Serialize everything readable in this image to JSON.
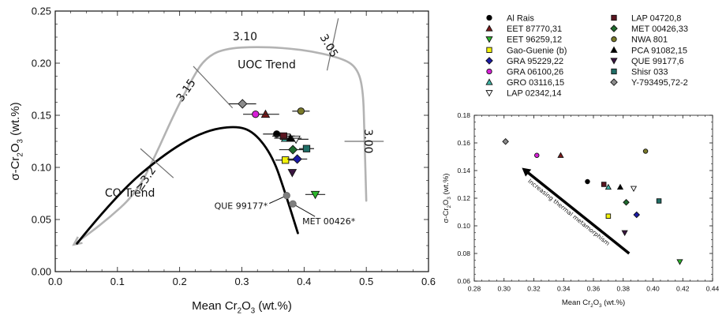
{
  "chart_data": [
    {
      "id": "main",
      "type": "scatter",
      "title": "",
      "xlabel": "Mean Cr2O3 (wt.%)",
      "xlabel_parts": [
        "Mean Cr",
        "2",
        "O",
        "3",
        " (wt.%)"
      ],
      "ylabel": "σ-Cr2O3 (wt.%)",
      "ylabel_parts": [
        "σ-Cr",
        "2",
        "O",
        "3",
        " (wt.%)"
      ],
      "xlim": [
        0.0,
        0.6
      ],
      "ylim": [
        0.0,
        0.25
      ],
      "xticks": [
        "0.0",
        "0.1",
        "0.2",
        "0.3",
        "0.4",
        "0.5",
        "0.6"
      ],
      "xtick_values": [
        0.0,
        0.1,
        0.2,
        0.3,
        0.4,
        0.5,
        0.6
      ],
      "yticks": [
        "0.00",
        "0.05",
        "0.10",
        "0.15",
        "0.20",
        "0.25"
      ],
      "ytick_values": [
        0.0,
        0.05,
        0.1,
        0.15,
        0.2,
        0.25
      ],
      "grid": false,
      "trends": [
        {
          "name": "UOC Trend",
          "color": "#b3b3b3",
          "points": [
            [
              0.5,
              0.068
            ],
            [
              0.497,
              0.13
            ],
            [
              0.495,
              0.175
            ],
            [
              0.485,
              0.196
            ],
            [
              0.46,
              0.205
            ],
            [
              0.4,
              0.213
            ],
            [
              0.33,
              0.216
            ],
            [
              0.27,
              0.214
            ],
            [
              0.24,
              0.204
            ],
            [
              0.22,
              0.185
            ],
            [
              0.19,
              0.15
            ],
            [
              0.16,
              0.11
            ],
            [
              0.13,
              0.075
            ],
            [
              0.08,
              0.048
            ],
            [
              0.03,
              0.026
            ]
          ],
          "arrow_end": true,
          "label_pos": [
            0.34,
            0.195
          ]
        },
        {
          "name": "CO Trend",
          "color": "#000000",
          "points": [
            [
              0.035,
              0.027
            ],
            [
              0.1,
              0.075
            ],
            [
              0.18,
              0.115
            ],
            [
              0.24,
              0.135
            ],
            [
              0.29,
              0.14
            ],
            [
              0.32,
              0.134
            ],
            [
              0.35,
              0.11
            ],
            [
              0.37,
              0.075
            ],
            [
              0.39,
              0.037
            ]
          ],
          "label_pos": [
            0.12,
            0.072
          ]
        }
      ],
      "petrologic_ticks": [
        {
          "label": "3.00",
          "x": 0.497,
          "y": 0.125,
          "angle": 90
        },
        {
          "label": "3.05",
          "x": 0.435,
          "y": 0.215,
          "angle": 60
        },
        {
          "label": "3.10",
          "x": 0.305,
          "y": 0.222,
          "angle": 0
        },
        {
          "label": "3.15",
          "x": 0.215,
          "y": 0.172,
          "angle": -55
        },
        {
          "label": "≥3.2",
          "x": 0.15,
          "y": 0.087,
          "angle": -55
        }
      ],
      "highlighted": [
        {
          "name": "QUE 99177*",
          "x": 0.372,
          "y": 0.073
        },
        {
          "name": "MET 00426*",
          "x": 0.382,
          "y": 0.065
        }
      ],
      "series": [
        {
          "name": "Al Rais",
          "x": 0.356,
          "y": 0.132,
          "xerr": 0.022
        },
        {
          "name": "EET 87770,31",
          "x": 0.338,
          "y": 0.151,
          "xerr": 0.022
        },
        {
          "name": "EET 96259,12",
          "x": 0.418,
          "y": 0.074,
          "xerr": 0.016
        },
        {
          "name": "Gao-Guenie (b)",
          "x": 0.37,
          "y": 0.107,
          "xerr": 0.016
        },
        {
          "name": "GRA 95229,22",
          "x": 0.389,
          "y": 0.108,
          "xerr": 0.016
        },
        {
          "name": "GRA 06100,26",
          "x": 0.322,
          "y": 0.151,
          "xerr": 0.02
        },
        {
          "name": "GRO 03116,15",
          "x": 0.37,
          "y": 0.128,
          "xerr": 0.018
        },
        {
          "name": "LAP 02342,14",
          "x": 0.387,
          "y": 0.127,
          "xerr": 0.02
        },
        {
          "name": "LAP 04720,8",
          "x": 0.367,
          "y": 0.13,
          "xerr": 0.018
        },
        {
          "name": "MET 00426,33",
          "x": 0.382,
          "y": 0.117,
          "xerr": 0.022
        },
        {
          "name": "NWA 801",
          "x": 0.395,
          "y": 0.154,
          "xerr": 0.014
        },
        {
          "name": "PCA 91082,15",
          "x": 0.378,
          "y": 0.128,
          "xerr": 0.018
        },
        {
          "name": "QUE 99177,6",
          "x": 0.381,
          "y": 0.095,
          "xerr": 0.0
        },
        {
          "name": "Shisr 033",
          "x": 0.404,
          "y": 0.118,
          "xerr": 0.012
        },
        {
          "name": "Y-793495,72-2",
          "x": 0.301,
          "y": 0.161,
          "xerr": 0.022
        }
      ]
    },
    {
      "id": "inset",
      "type": "scatter",
      "title": "",
      "xlabel": "Mean Cr2O3 (wt.%)",
      "xlabel_parts": [
        "Mean Cr",
        "2",
        "O",
        "3",
        " (wt.%)"
      ],
      "ylabel": "σ-Cr2O3 (wt.%)",
      "ylabel_parts": [
        "σ-Cr",
        "2",
        "O",
        "3",
        " (wt.%)"
      ],
      "xlim": [
        0.28,
        0.44
      ],
      "ylim": [
        0.06,
        0.18
      ],
      "xticks": [
        "0.28",
        "0.30",
        "0.32",
        "0.34",
        "0.36",
        "0.38",
        "0.40",
        "0.42",
        "0.44"
      ],
      "xtick_values": [
        0.28,
        0.3,
        0.32,
        0.34,
        0.36,
        0.38,
        0.4,
        0.42,
        0.44
      ],
      "yticks": [
        "0.06",
        "0.08",
        "0.10",
        "0.12",
        "0.14",
        "0.16",
        "0.18"
      ],
      "ytick_values": [
        0.06,
        0.08,
        0.1,
        0.12,
        0.14,
        0.16,
        0.18
      ],
      "grid": false,
      "annotation": {
        "text": "Increasing thermal metamorphism",
        "arrow_from": [
          0.384,
          0.08
        ],
        "arrow_to": [
          0.312,
          0.142
        ]
      },
      "series": [
        {
          "name": "Al Rais",
          "x": 0.356,
          "y": 0.132
        },
        {
          "name": "EET 87770,31",
          "x": 0.338,
          "y": 0.151
        },
        {
          "name": "EET 96259,12",
          "x": 0.418,
          "y": 0.074
        },
        {
          "name": "Gao-Guenie (b)",
          "x": 0.37,
          "y": 0.107
        },
        {
          "name": "GRA 95229,22",
          "x": 0.389,
          "y": 0.108
        },
        {
          "name": "GRA 06100,26",
          "x": 0.322,
          "y": 0.151
        },
        {
          "name": "GRO 03116,15",
          "x": 0.37,
          "y": 0.128
        },
        {
          "name": "LAP 02342,14",
          "x": 0.387,
          "y": 0.127
        },
        {
          "name": "LAP 04720,8",
          "x": 0.367,
          "y": 0.13
        },
        {
          "name": "MET 00426,33",
          "x": 0.382,
          "y": 0.117
        },
        {
          "name": "NWA 801",
          "x": 0.395,
          "y": 0.154
        },
        {
          "name": "PCA 91082,15",
          "x": 0.378,
          "y": 0.128
        },
        {
          "name": "QUE 99177,6",
          "x": 0.381,
          "y": 0.095
        },
        {
          "name": "Shisr 033",
          "x": 0.404,
          "y": 0.118
        },
        {
          "name": "Y-793495,72-2",
          "x": 0.301,
          "y": 0.161
        }
      ]
    }
  ],
  "legend": {
    "placement": "top-right",
    "entries": [
      {
        "name": "Al Rais",
        "marker": "circle",
        "color": "#000000"
      },
      {
        "name": "EET 87770,31",
        "marker": "triangle-up",
        "color": "#7a1a1a"
      },
      {
        "name": "EET 96259,12",
        "marker": "triangle-down",
        "color": "#2db82d"
      },
      {
        "name": "Gao-Guenie (b)",
        "marker": "square",
        "color": "#f2f20a"
      },
      {
        "name": "GRA 95229,22",
        "marker": "diamond",
        "color": "#1a1aa6"
      },
      {
        "name": "GRA 06100,26",
        "marker": "circle",
        "color": "#d61fd6"
      },
      {
        "name": "GRO 03116,15",
        "marker": "triangle-up",
        "color": "#3fb5a6"
      },
      {
        "name": "LAP 02342,14",
        "marker": "triangle-down",
        "color": "#ffffff"
      },
      {
        "name": "LAP 04720,8",
        "marker": "square",
        "color": "#5a1520"
      },
      {
        "name": "MET 00426,33",
        "marker": "diamond",
        "color": "#1f6b2e"
      },
      {
        "name": "NWA 801",
        "marker": "circle",
        "color": "#7a7a2a"
      },
      {
        "name": "PCA 91082,15",
        "marker": "triangle-up",
        "color": "#000000"
      },
      {
        "name": "QUE 99177,6",
        "marker": "triangle-down",
        "color": "#3a1540"
      },
      {
        "name": "Shisr 033",
        "marker": "square",
        "color": "#1f6e66"
      },
      {
        "name": "Y-793495,72-2",
        "marker": "diamond",
        "color": "#8c8c8c"
      }
    ]
  }
}
